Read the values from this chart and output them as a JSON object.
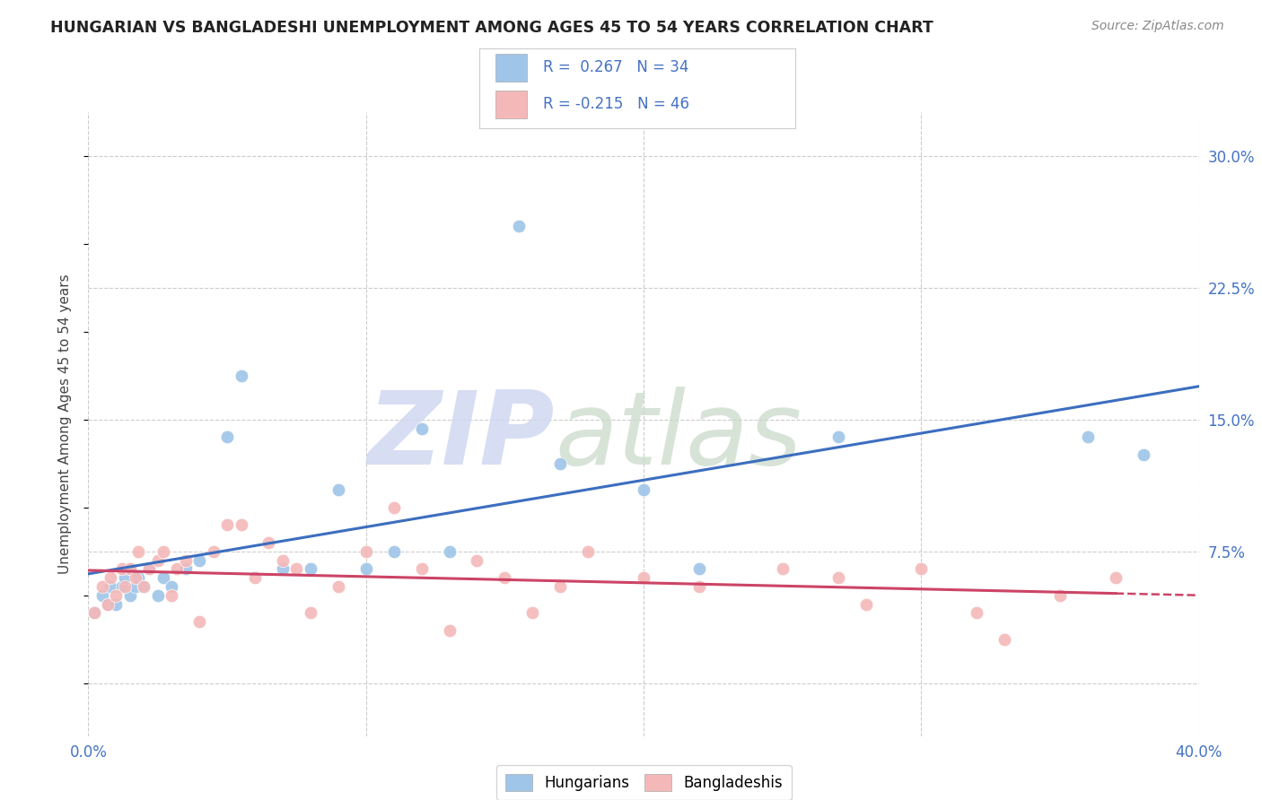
{
  "title": "HUNGARIAN VS BANGLADESHI UNEMPLOYMENT AMONG AGES 45 TO 54 YEARS CORRELATION CHART",
  "source": "Source: ZipAtlas.com",
  "ylabel": "Unemployment Among Ages 45 to 54 years",
  "xlim": [
    0.0,
    0.4
  ],
  "ylim": [
    -0.03,
    0.325
  ],
  "xticks": [
    0.0,
    0.1,
    0.2,
    0.3,
    0.4
  ],
  "xticklabels": [
    "0.0%",
    "",
    "",
    "",
    "40.0%"
  ],
  "ytick_positions": [
    0.0,
    0.075,
    0.15,
    0.225,
    0.3
  ],
  "ytick_labels": [
    "",
    "7.5%",
    "15.0%",
    "22.5%",
    "30.0%"
  ],
  "watermark_zip": "ZIP",
  "watermark_atlas": "atlas",
  "R_hungarian": 0.267,
  "N_hungarian": 34,
  "R_bangladeshi": -0.215,
  "N_bangladeshi": 46,
  "hungarian_color": "#a4c2f4",
  "bangladeshi_color": "#ea9999",
  "hungarian_line_color": "#3c6ebf",
  "bangladeshi_line_color": "#cc4466",
  "background_color": "#ffffff",
  "grid_color": "#cccccc",
  "hun_scatter_color": "#9fc5e8",
  "ban_scatter_color": "#f4b8b8",
  "hungarian_x": [
    0.002,
    0.005,
    0.007,
    0.008,
    0.01,
    0.012,
    0.013,
    0.015,
    0.015,
    0.017,
    0.018,
    0.02,
    0.022,
    0.025,
    0.027,
    0.03,
    0.035,
    0.04,
    0.05,
    0.055,
    0.07,
    0.08,
    0.09,
    0.1,
    0.11,
    0.12,
    0.13,
    0.155,
    0.17,
    0.2,
    0.22,
    0.27,
    0.36,
    0.38
  ],
  "hungarian_y": [
    0.04,
    0.05,
    0.045,
    0.055,
    0.045,
    0.055,
    0.06,
    0.05,
    0.065,
    0.055,
    0.06,
    0.055,
    0.065,
    0.05,
    0.06,
    0.055,
    0.065,
    0.07,
    0.14,
    0.175,
    0.065,
    0.065,
    0.11,
    0.065,
    0.075,
    0.145,
    0.075,
    0.26,
    0.125,
    0.11,
    0.065,
    0.14,
    0.14,
    0.13
  ],
  "bangladeshi_x": [
    0.002,
    0.005,
    0.007,
    0.008,
    0.01,
    0.012,
    0.013,
    0.015,
    0.017,
    0.018,
    0.02,
    0.022,
    0.025,
    0.027,
    0.03,
    0.032,
    0.035,
    0.04,
    0.045,
    0.05,
    0.055,
    0.06,
    0.065,
    0.07,
    0.075,
    0.08,
    0.09,
    0.1,
    0.11,
    0.12,
    0.13,
    0.14,
    0.15,
    0.16,
    0.17,
    0.18,
    0.2,
    0.22,
    0.25,
    0.27,
    0.28,
    0.3,
    0.32,
    0.33,
    0.35,
    0.37
  ],
  "bangladeshi_y": [
    0.04,
    0.055,
    0.045,
    0.06,
    0.05,
    0.065,
    0.055,
    0.065,
    0.06,
    0.075,
    0.055,
    0.065,
    0.07,
    0.075,
    0.05,
    0.065,
    0.07,
    0.035,
    0.075,
    0.09,
    0.09,
    0.06,
    0.08,
    0.07,
    0.065,
    0.04,
    0.055,
    0.075,
    0.1,
    0.065,
    0.03,
    0.07,
    0.06,
    0.04,
    0.055,
    0.075,
    0.06,
    0.055,
    0.065,
    0.06,
    0.045,
    0.065,
    0.04,
    0.025,
    0.05,
    0.06
  ]
}
